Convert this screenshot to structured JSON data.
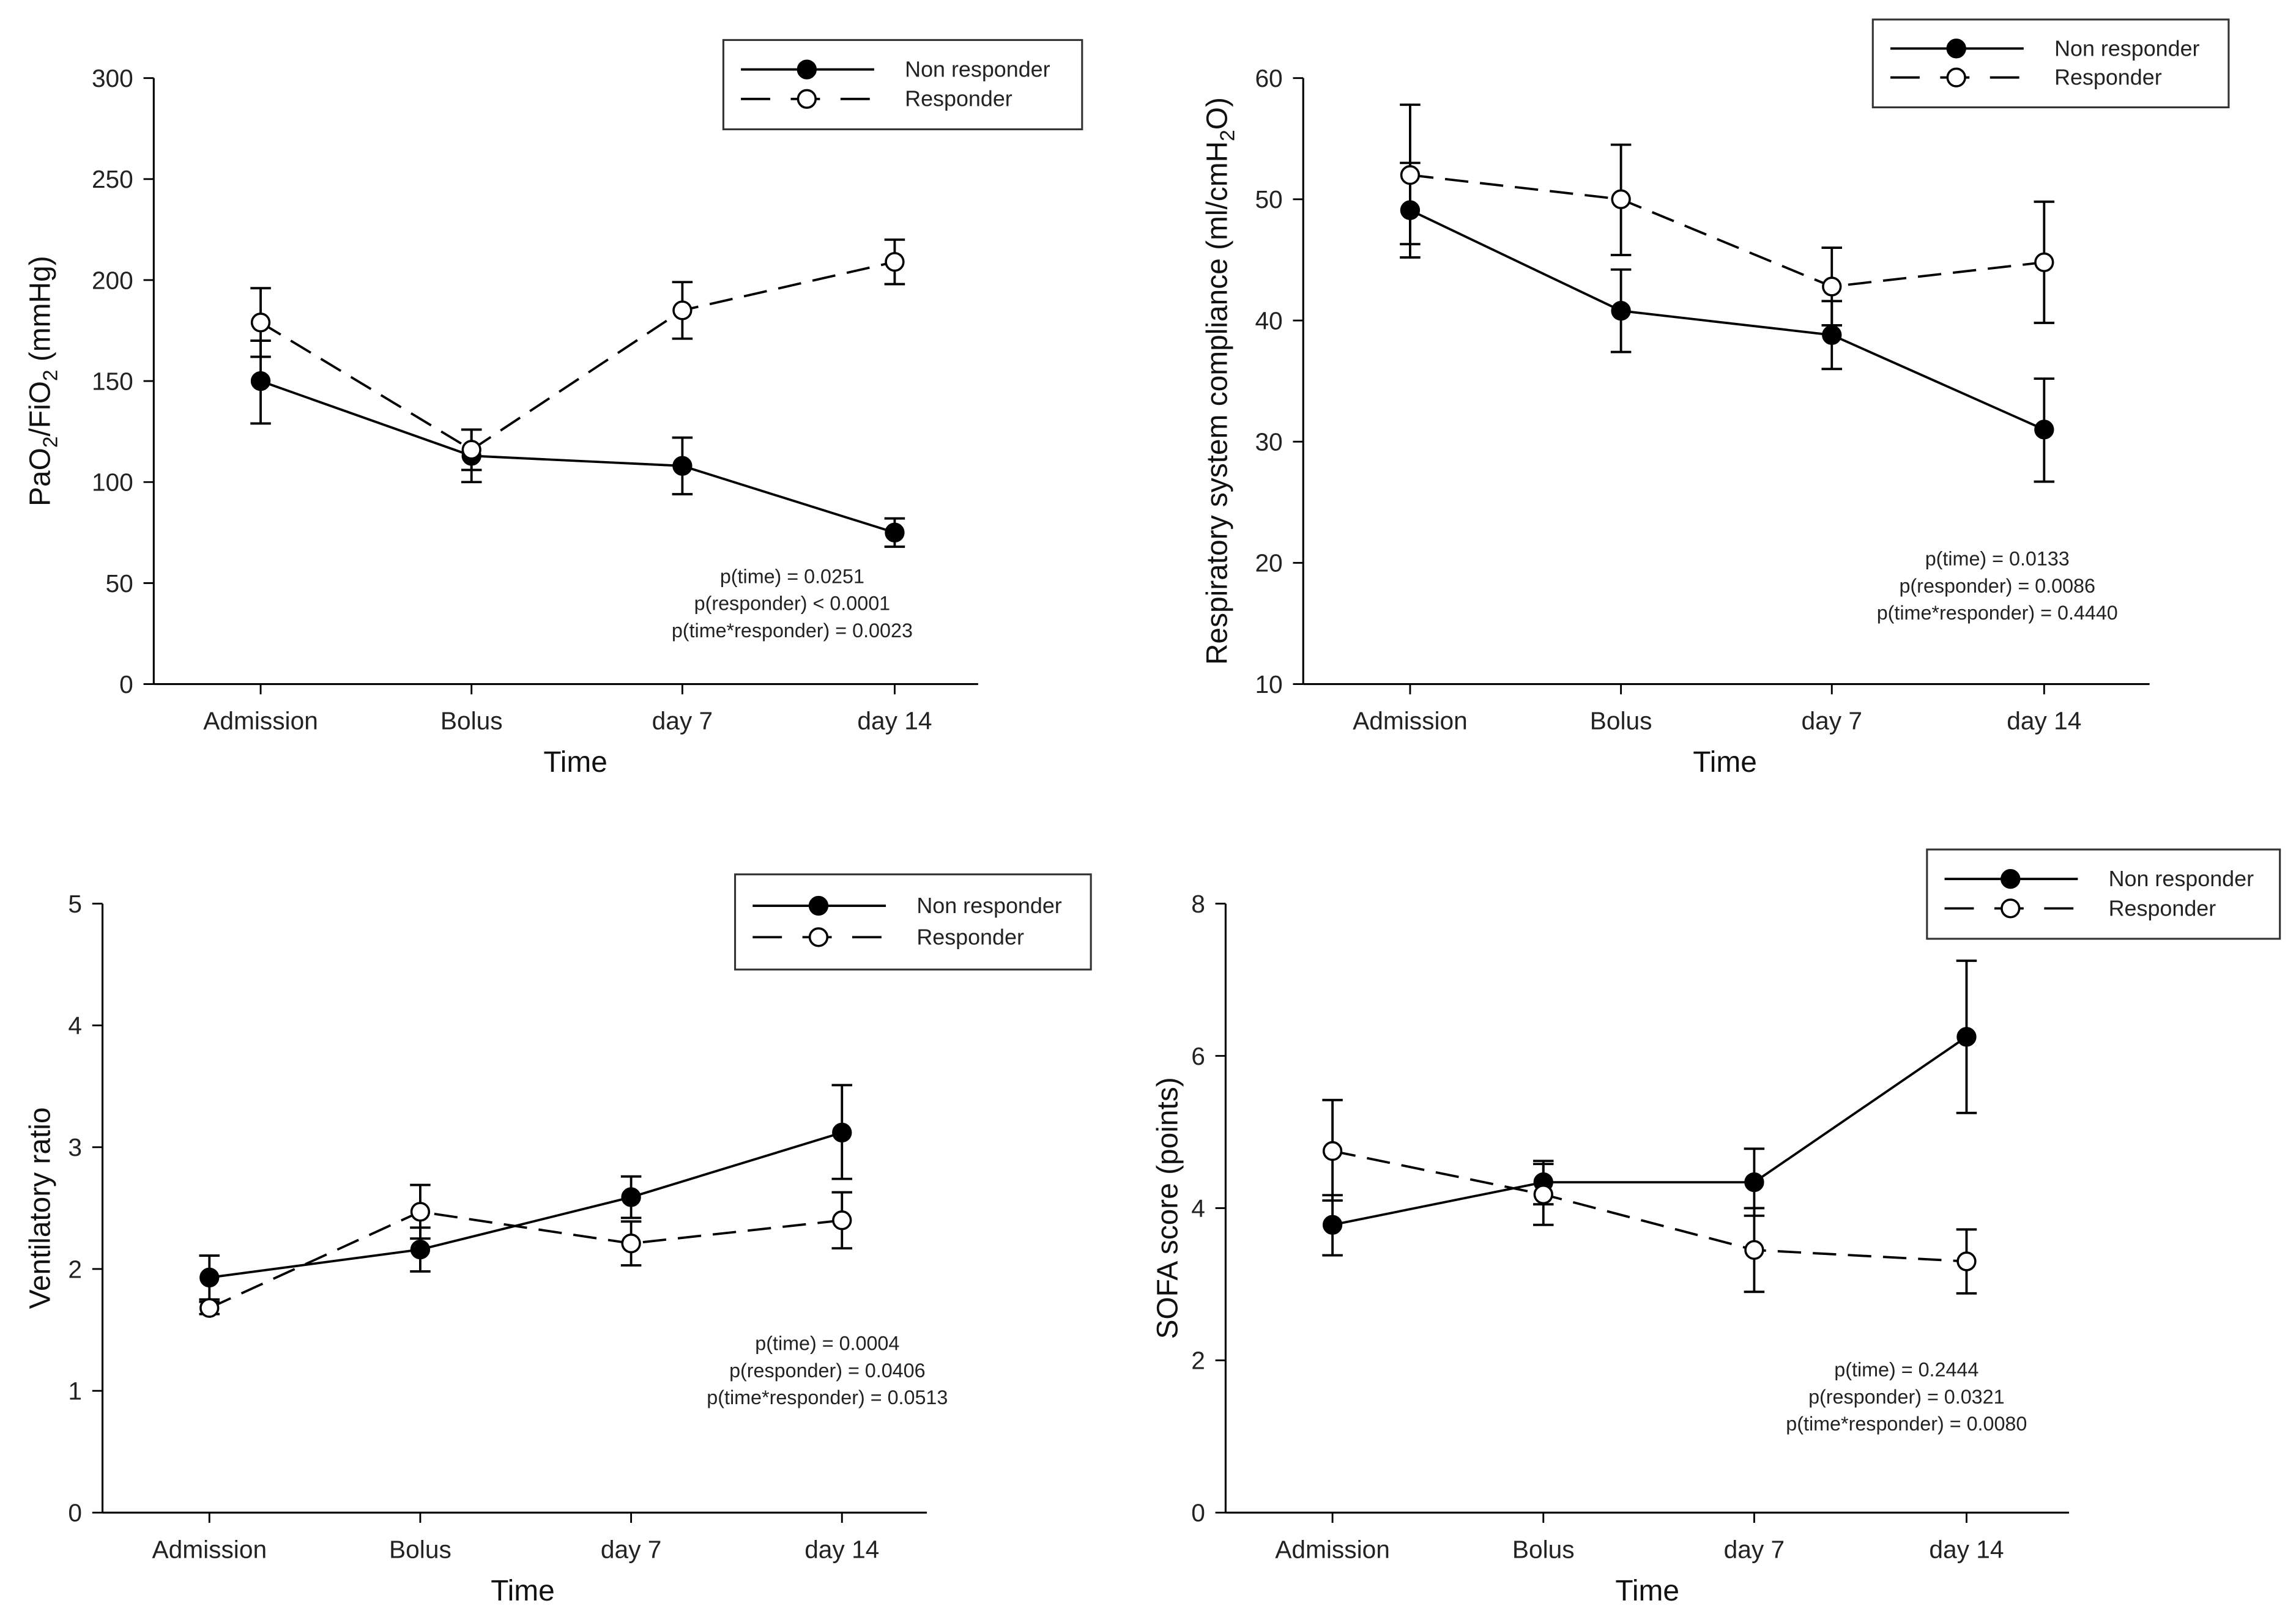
{
  "chart_data": [
    {
      "type": "line",
      "ylabel": "PaO2/FiO2 (mmHg)",
      "ylabel_parts": [
        "PaO",
        "2",
        "/FiO",
        "2",
        " (mmHg)"
      ],
      "xlabel": "Time",
      "categories": [
        "Admission",
        "Bolus",
        "day 7",
        "day 14"
      ],
      "ylim": [
        0,
        300
      ],
      "yticks": [
        0,
        50,
        100,
        150,
        200,
        250,
        300
      ],
      "legend_position": "top-right",
      "series": [
        {
          "name": "Non responder",
          "marker": "filled-circle",
          "line": "solid",
          "values": [
            150,
            113,
            108,
            75
          ],
          "err_low": [
            129,
            100,
            94,
            68
          ],
          "err_high": [
            170,
            126,
            122,
            82
          ]
        },
        {
          "name": "Responder",
          "marker": "open-circle",
          "line": "dashed",
          "values": [
            179,
            116,
            185,
            209
          ],
          "err_low": [
            162,
            106,
            171,
            198
          ],
          "err_high": [
            196,
            126,
            199,
            220
          ]
        }
      ],
      "annotations": [
        "p(time) = 0.0251",
        "p(responder) < 0.0001",
        "p(time*responder) = 0.0023"
      ]
    },
    {
      "type": "line",
      "ylabel": "Respiratory system compliance (ml/cmH2O)",
      "ylabel_parts": [
        "Respiratory system compliance (ml/cmH",
        "2",
        "O)"
      ],
      "xlabel": "Time",
      "categories": [
        "Admission",
        "Bolus",
        "day 7",
        "day 14"
      ],
      "ylim": [
        10,
        60
      ],
      "yticks": [
        10,
        20,
        30,
        40,
        50,
        60
      ],
      "legend_position": "top-right",
      "series": [
        {
          "name": "Non responder",
          "marker": "filled-circle",
          "line": "solid",
          "values": [
            49.1,
            40.8,
            38.8,
            31.0
          ],
          "err_low": [
            45.2,
            37.4,
            36.0,
            26.7
          ],
          "err_high": [
            53.0,
            44.2,
            41.6,
            35.2
          ]
        },
        {
          "name": "Responder",
          "marker": "open-circle",
          "line": "dashed",
          "values": [
            52.0,
            50.0,
            42.8,
            44.8
          ],
          "err_low": [
            46.3,
            45.4,
            39.6,
            39.8
          ],
          "err_high": [
            57.8,
            54.5,
            46.0,
            49.8
          ]
        }
      ],
      "annotations": [
        "p(time) = 0.0133",
        "p(responder) = 0.0086",
        "p(time*responder) = 0.4440"
      ]
    },
    {
      "type": "line",
      "ylabel": "Ventilatory ratio",
      "ylabel_parts": [
        "Ventilatory ratio"
      ],
      "xlabel": "Time",
      "categories": [
        "Admission",
        "Bolus",
        "day 7",
        "day 14"
      ],
      "ylim": [
        0,
        5
      ],
      "yticks": [
        0,
        1,
        2,
        3,
        4,
        5
      ],
      "legend_position": "top-right",
      "series": [
        {
          "name": "Non responder",
          "marker": "filled-circle",
          "line": "solid",
          "values": [
            1.93,
            2.16,
            2.59,
            3.12
          ],
          "err_low": [
            1.75,
            1.98,
            2.42,
            2.74
          ],
          "err_high": [
            2.11,
            2.34,
            2.76,
            3.51
          ]
        },
        {
          "name": "Responder",
          "marker": "open-circle",
          "line": "dashed",
          "values": [
            1.68,
            2.47,
            2.21,
            2.4
          ],
          "err_low": [
            1.63,
            2.25,
            2.03,
            2.17
          ],
          "err_high": [
            1.73,
            2.69,
            2.39,
            2.63
          ]
        }
      ],
      "annotations": [
        "p(time) = 0.0004",
        "p(responder) = 0.0406",
        "p(time*responder) = 0.0513"
      ]
    },
    {
      "type": "line",
      "ylabel": "SOFA score (points)",
      "ylabel_parts": [
        "SOFA score (points)"
      ],
      "xlabel": "Time",
      "categories": [
        "Admission",
        "Bolus",
        "day 7",
        "day 14"
      ],
      "ylim": [
        0,
        8
      ],
      "yticks": [
        0,
        2,
        4,
        6,
        8
      ],
      "legend_position": "top-right",
      "series": [
        {
          "name": "Non responder",
          "marker": "filled-circle",
          "line": "solid",
          "values": [
            3.78,
            4.34,
            4.34,
            6.25
          ],
          "err_low": [
            3.38,
            4.05,
            3.9,
            5.25
          ],
          "err_high": [
            4.17,
            4.62,
            4.78,
            7.25
          ]
        },
        {
          "name": "Responder",
          "marker": "open-circle",
          "line": "dashed",
          "values": [
            4.75,
            4.18,
            3.45,
            3.3
          ],
          "err_low": [
            4.1,
            3.78,
            2.9,
            2.88
          ],
          "err_high": [
            5.42,
            4.58,
            4.0,
            3.72
          ]
        }
      ],
      "annotations": [
        "p(time) = 0.2444",
        "p(responder) = 0.0321",
        "p(time*responder) = 0.0080"
      ]
    }
  ]
}
